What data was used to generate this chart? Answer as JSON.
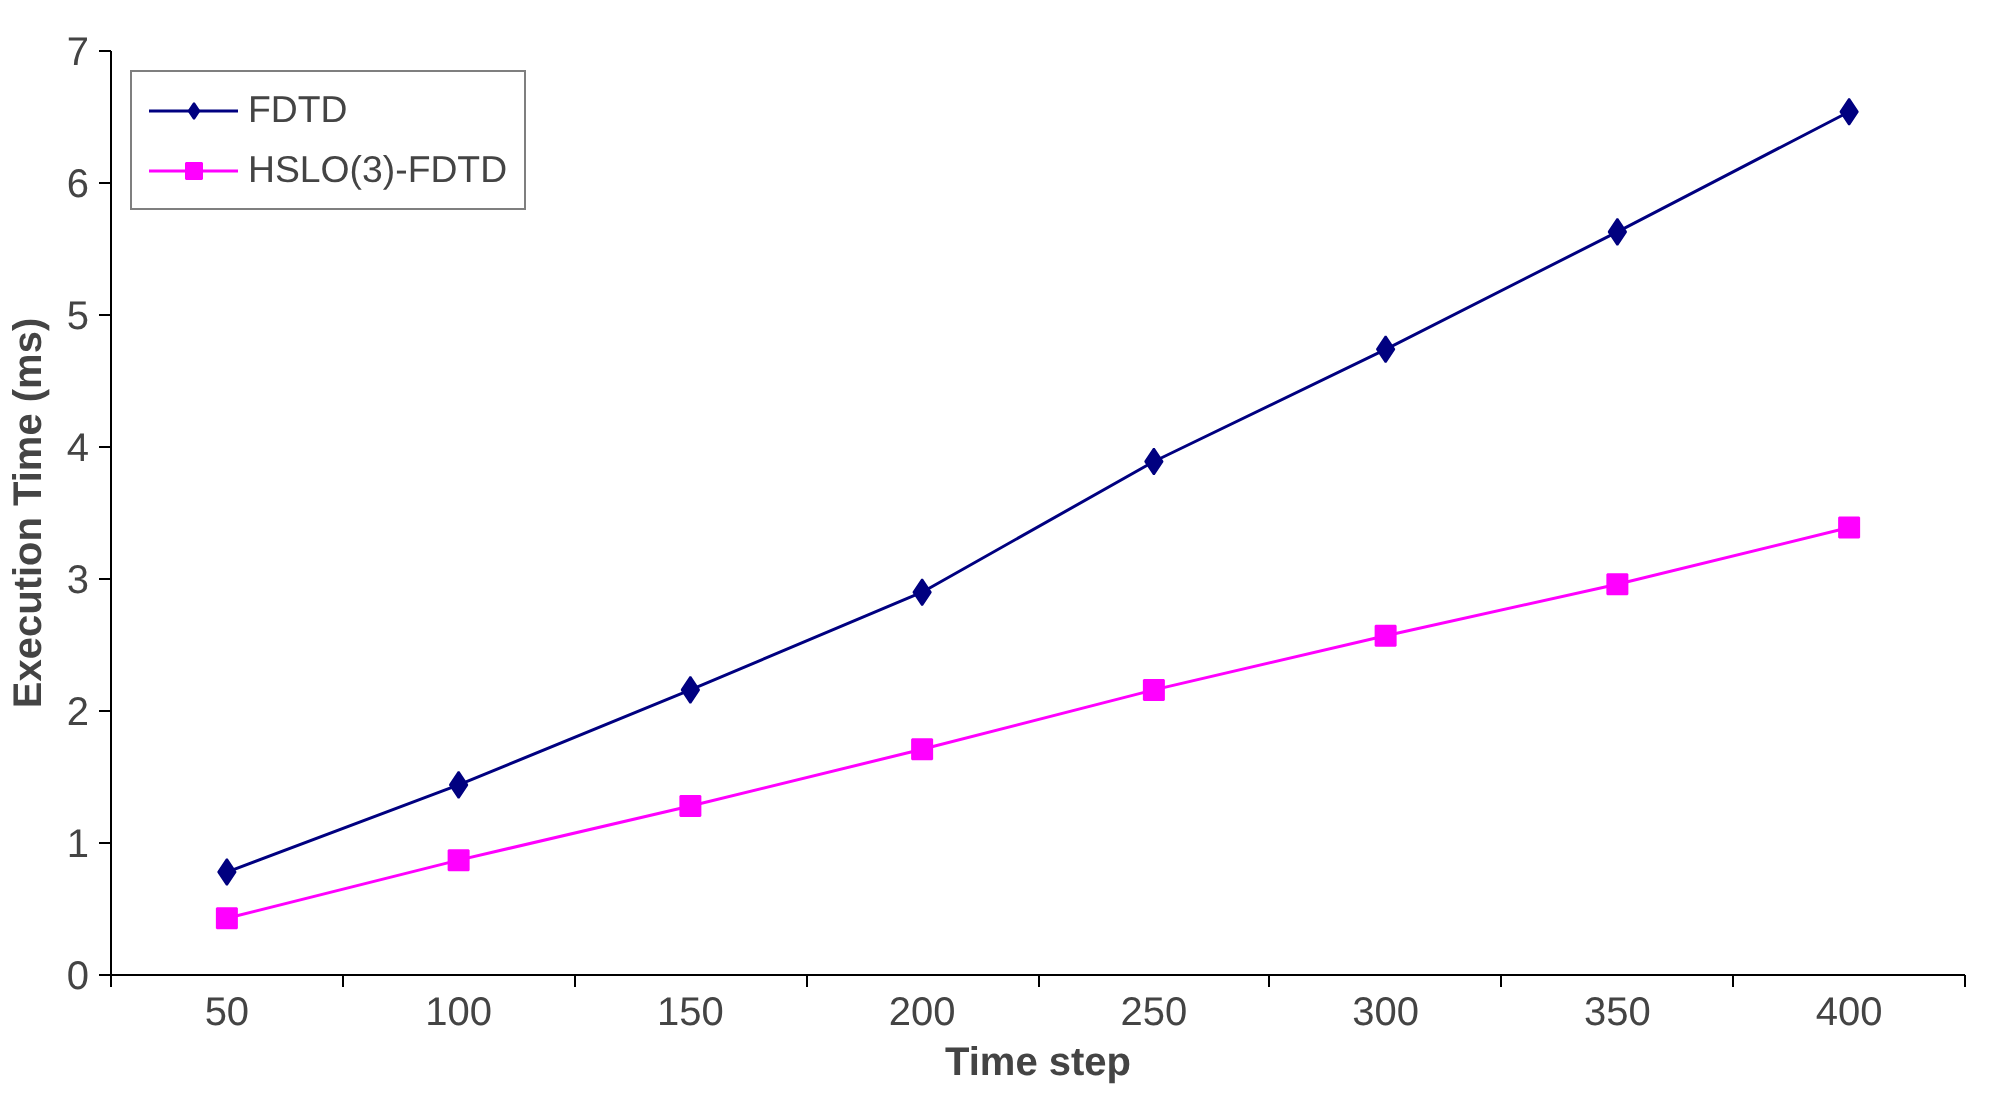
{
  "chart_data": {
    "type": "line",
    "xlabel": "Time step",
    "ylabel": "Execution Time (ms)",
    "categories": [
      "50",
      "100",
      "150",
      "200",
      "250",
      "300",
      "350",
      "400"
    ],
    "ylim": [
      0,
      7
    ],
    "yticks": [
      0,
      1,
      2,
      3,
      4,
      5,
      6,
      7
    ],
    "grid": false,
    "legend": "top left",
    "series": [
      {
        "name": "FDTD",
        "color": "#000080",
        "marker": "diamond",
        "values": [
          0.78,
          1.44,
          2.16,
          2.9,
          3.89,
          4.74,
          5.63,
          6.54
        ]
      },
      {
        "name": "HSLO(3)-FDTD",
        "color": "#ff00ff",
        "marker": "square",
        "values": [
          0.43,
          0.87,
          1.28,
          1.71,
          2.16,
          2.57,
          2.96,
          3.39
        ]
      }
    ]
  }
}
